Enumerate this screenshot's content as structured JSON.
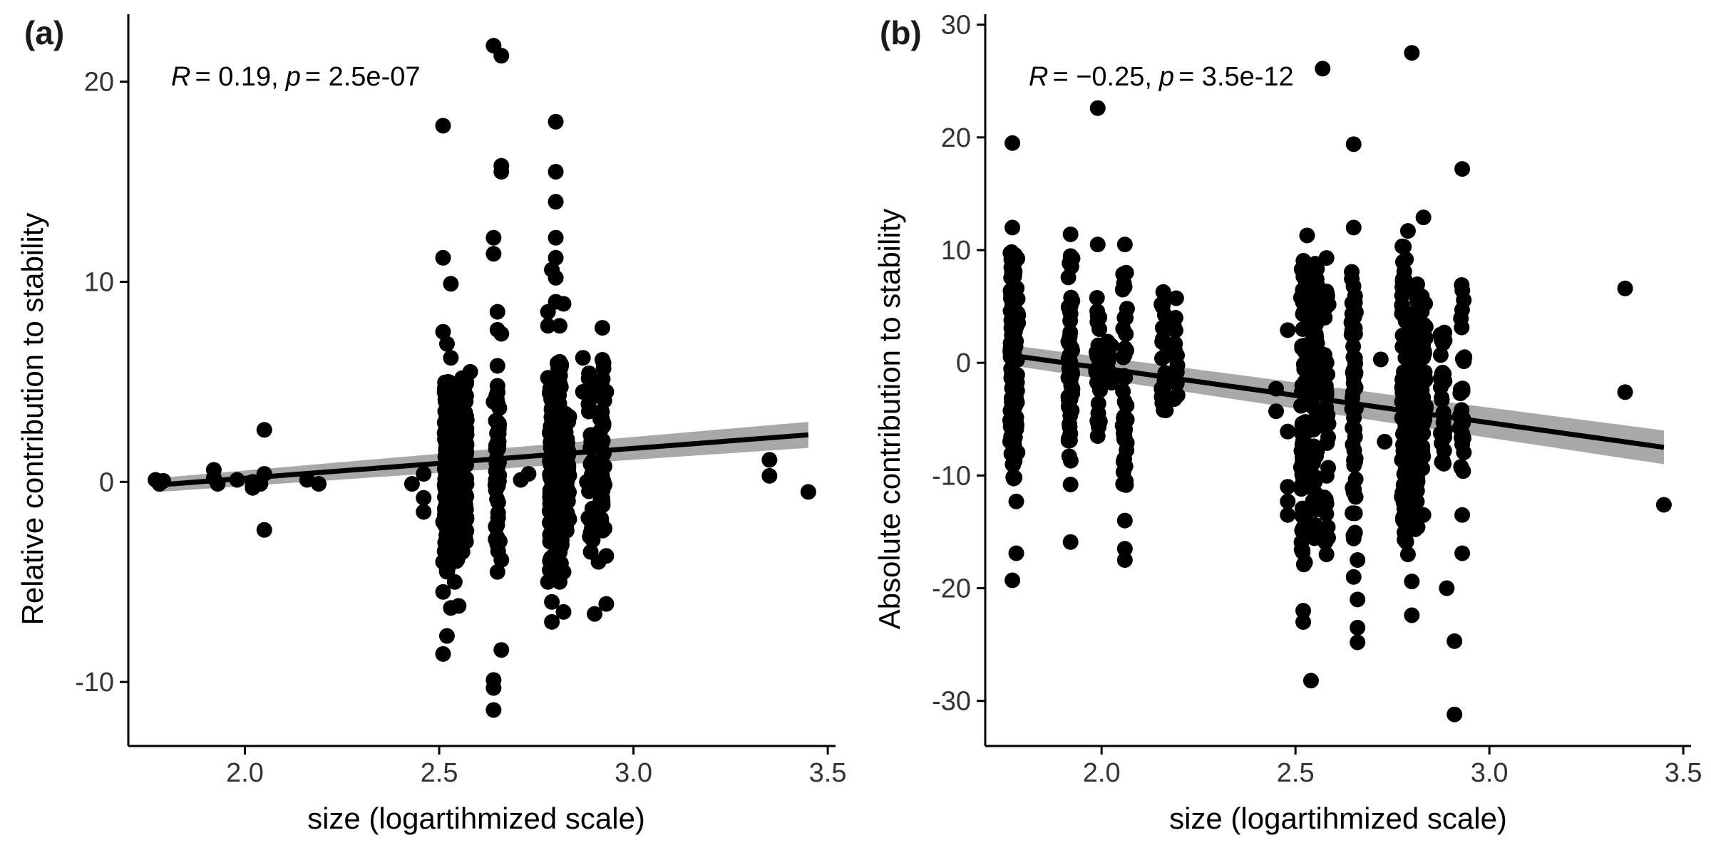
{
  "colors": {
    "point": "#000000",
    "fit_line": "#000000",
    "confidence_band": "#999999",
    "axis": "#000000"
  },
  "chart_data": [
    {
      "type": "scatter",
      "panel": "(a)",
      "title": "",
      "xlabel": "size (logartihmized scale)",
      "ylabel": "Relative contribution to stability",
      "xlim": [
        1.7,
        3.52
      ],
      "ylim": [
        -13.2,
        23.3
      ],
      "xticks": [
        2.0,
        2.5,
        3.0,
        3.5
      ],
      "xtick_labels": [
        "2.0",
        "2.5",
        "3.0",
        "3.5"
      ],
      "yticks": [
        -10,
        0,
        10,
        20
      ],
      "ytick_labels": [
        "-10",
        "0",
        "10",
        "20"
      ],
      "grid": false,
      "legend": "none",
      "annotation": {
        "r_label": "R",
        "r_value": "= 0.19,",
        "p_label": "p",
        "p_value": "= 2.5e-07"
      },
      "fit": {
        "x": [
          1.78,
          3.45
        ],
        "y": [
          -0.15,
          2.35
        ],
        "ci_low": [
          -0.5,
          1.7
        ],
        "ci_high": [
          0.2,
          3.0
        ]
      },
      "points": [
        [
          1.77,
          0.1
        ],
        [
          1.78,
          -0.1
        ],
        [
          1.79,
          0.05
        ],
        [
          1.92,
          0.6
        ],
        [
          1.92,
          0.2
        ],
        [
          1.93,
          -0.1
        ],
        [
          1.98,
          0.1
        ],
        [
          2.02,
          0.0
        ],
        [
          2.02,
          -0.3
        ],
        [
          2.04,
          -0.1
        ],
        [
          2.05,
          0.4
        ],
        [
          2.05,
          2.6
        ],
        [
          2.05,
          -2.4
        ],
        [
          2.16,
          0.1
        ],
        [
          2.19,
          -0.1
        ],
        [
          2.43,
          -0.1
        ],
        [
          2.46,
          -0.8
        ],
        [
          2.46,
          -1.5
        ],
        [
          2.46,
          0.4
        ],
        [
          2.51,
          17.8
        ],
        [
          2.51,
          11.2
        ],
        [
          2.51,
          7.5
        ],
        [
          2.51,
          -2.0
        ],
        [
          2.51,
          -4.0
        ],
        [
          2.51,
          -5.5
        ],
        [
          2.51,
          -8.6
        ],
        [
          2.52,
          6.9
        ],
        [
          2.52,
          -1.0
        ],
        [
          2.52,
          -3.0
        ],
        [
          2.52,
          -7.7
        ],
        [
          2.53,
          9.9
        ],
        [
          2.53,
          6.2
        ],
        [
          2.53,
          -6.3
        ],
        [
          2.54,
          -5.0
        ],
        [
          2.55,
          -6.2
        ],
        [
          2.56,
          -3.5
        ],
        [
          2.56,
          -2.5
        ],
        [
          2.57,
          5.0
        ],
        [
          2.58,
          5.5
        ],
        [
          2.64,
          21.8
        ],
        [
          2.66,
          21.3
        ],
        [
          2.66,
          15.8
        ],
        [
          2.66,
          15.5
        ],
        [
          2.64,
          12.2
        ],
        [
          2.64,
          11.4
        ],
        [
          2.65,
          8.5
        ],
        [
          2.65,
          7.6
        ],
        [
          2.66,
          7.4
        ],
        [
          2.65,
          5.8
        ],
        [
          2.65,
          4.8
        ],
        [
          2.64,
          4.0
        ],
        [
          2.65,
          3.0
        ],
        [
          2.66,
          -3.9
        ],
        [
          2.65,
          -4.5
        ],
        [
          2.66,
          -8.4
        ],
        [
          2.64,
          -9.9
        ],
        [
          2.64,
          -10.3
        ],
        [
          2.64,
          -11.4
        ],
        [
          2.71,
          0.1
        ],
        [
          2.73,
          0.4
        ],
        [
          2.78,
          8.5
        ],
        [
          2.78,
          7.8
        ],
        [
          2.78,
          5.2
        ],
        [
          2.78,
          -5.0
        ],
        [
          2.79,
          -6.0
        ],
        [
          2.79,
          -7.0
        ],
        [
          2.79,
          10.6
        ],
        [
          2.8,
          18.0
        ],
        [
          2.8,
          15.5
        ],
        [
          2.8,
          14.0
        ],
        [
          2.8,
          12.2
        ],
        [
          2.8,
          11.2
        ],
        [
          2.8,
          10.2
        ],
        [
          2.8,
          9.0
        ],
        [
          2.81,
          7.8
        ],
        [
          2.81,
          6.0
        ],
        [
          2.82,
          8.9
        ],
        [
          2.82,
          -6.5
        ],
        [
          2.82,
          -4.5
        ],
        [
          2.81,
          -5.0
        ],
        [
          2.87,
          6.2
        ],
        [
          2.87,
          4.5
        ],
        [
          2.88,
          0.0
        ],
        [
          2.89,
          -3.5
        ],
        [
          2.9,
          -6.6
        ],
        [
          2.91,
          -4.0
        ],
        [
          2.92,
          7.7
        ],
        [
          2.92,
          6.1
        ],
        [
          2.93,
          4.5
        ],
        [
          2.93,
          -6.1
        ],
        [
          2.93,
          -3.7
        ],
        [
          3.35,
          1.1
        ],
        [
          3.35,
          0.3
        ],
        [
          3.45,
          -0.5
        ]
      ],
      "clusters": [
        {
          "x": 2.52,
          "count": 150,
          "y_min": -4.5,
          "y_max": 5.0
        },
        {
          "x": 2.545,
          "count": 110,
          "y_min": -4.0,
          "y_max": 4.5
        },
        {
          "x": 2.565,
          "count": 90,
          "y_min": -3.0,
          "y_max": 5.2
        },
        {
          "x": 2.65,
          "count": 50,
          "y_min": -3.5,
          "y_max": 4.5
        },
        {
          "x": 2.79,
          "count": 90,
          "y_min": -4.5,
          "y_max": 5.0
        },
        {
          "x": 2.81,
          "count": 90,
          "y_min": -4.5,
          "y_max": 6.0
        },
        {
          "x": 2.83,
          "count": 35,
          "y_min": -2.5,
          "y_max": 3.5
        },
        {
          "x": 2.89,
          "count": 30,
          "y_min": -3.0,
          "y_max": 6.0
        },
        {
          "x": 2.92,
          "count": 40,
          "y_min": -2.5,
          "y_max": 6.0
        }
      ]
    },
    {
      "type": "scatter",
      "panel": "(b)",
      "title": "",
      "xlabel": "size (logartihmized scale)",
      "ylabel": "Absolute contribution to stability",
      "xlim": [
        1.7,
        3.52
      ],
      "ylim": [
        -34,
        30.8
      ],
      "xticks": [
        2.0,
        2.5,
        3.0,
        3.5
      ],
      "xtick_labels": [
        "2.0",
        "2.5",
        "3.0",
        "3.5"
      ],
      "yticks": [
        -30,
        -20,
        -10,
        0,
        10,
        20,
        30
      ],
      "ytick_labels": [
        "-30",
        "-20",
        "-10",
        "0",
        "10",
        "20",
        "30"
      ],
      "grid": false,
      "legend": "none",
      "annotation": {
        "r_label": "R",
        "r_value": "= −0.25,",
        "p_label": "p",
        "p_value": "= 3.5e-12"
      },
      "fit": {
        "x": [
          1.78,
          3.45
        ],
        "y": [
          0.6,
          -7.5
        ],
        "ci_low": [
          -0.3,
          -9.0
        ],
        "ci_high": [
          1.5,
          -6.0
        ]
      },
      "points": [
        [
          1.77,
          19.5
        ],
        [
          1.77,
          12.0
        ],
        [
          1.78,
          -12.3
        ],
        [
          1.78,
          -16.9
        ],
        [
          1.77,
          -19.3
        ],
        [
          1.92,
          11.4
        ],
        [
          1.92,
          9.0
        ],
        [
          1.92,
          -15.9
        ],
        [
          1.92,
          -10.8
        ],
        [
          1.99,
          22.6
        ],
        [
          1.99,
          10.5
        ],
        [
          1.99,
          -6.5
        ],
        [
          2.06,
          10.5
        ],
        [
          2.06,
          -16.5
        ],
        [
          2.06,
          -17.5
        ],
        [
          2.06,
          -14.0
        ],
        [
          2.45,
          -2.3
        ],
        [
          2.45,
          -4.3
        ],
        [
          2.48,
          2.9
        ],
        [
          2.48,
          -6.1
        ],
        [
          2.48,
          -11.0
        ],
        [
          2.48,
          -12.3
        ],
        [
          2.48,
          -13.5
        ],
        [
          2.52,
          -22.0
        ],
        [
          2.52,
          -23.0
        ],
        [
          2.53,
          11.3
        ],
        [
          2.54,
          -28.2
        ],
        [
          2.57,
          26.1
        ],
        [
          2.58,
          9.3
        ],
        [
          2.58,
          -17.0
        ],
        [
          2.58,
          -12.5
        ],
        [
          2.65,
          19.4
        ],
        [
          2.65,
          12.0
        ],
        [
          2.65,
          -19.0
        ],
        [
          2.66,
          -21.0
        ],
        [
          2.66,
          -23.5
        ],
        [
          2.66,
          -24.8
        ],
        [
          2.66,
          -17.5
        ],
        [
          2.72,
          0.3
        ],
        [
          2.73,
          -7.0
        ],
        [
          2.79,
          11.7
        ],
        [
          2.79,
          -17.0
        ],
        [
          2.8,
          27.5
        ],
        [
          2.8,
          -22.4
        ],
        [
          2.8,
          -19.4
        ],
        [
          2.83,
          12.9
        ],
        [
          2.83,
          -13.5
        ],
        [
          2.89,
          -20.0
        ],
        [
          2.91,
          -24.7
        ],
        [
          2.91,
          -31.2
        ],
        [
          2.93,
          17.2
        ],
        [
          2.93,
          -16.9
        ],
        [
          2.93,
          -13.5
        ],
        [
          3.35,
          6.6
        ],
        [
          3.35,
          -2.6
        ],
        [
          3.45,
          -12.6
        ]
      ],
      "clusters": [
        {
          "x": 1.77,
          "count": 70,
          "y_min": -10.5,
          "y_max": 11.5
        },
        {
          "x": 1.78,
          "count": 40,
          "y_min": -8.0,
          "y_max": 10.0
        },
        {
          "x": 1.92,
          "count": 55,
          "y_min": -9.0,
          "y_max": 9.5
        },
        {
          "x": 1.99,
          "count": 30,
          "y_min": -6.0,
          "y_max": 7.0
        },
        {
          "x": 2.02,
          "count": 15,
          "y_min": -2.0,
          "y_max": 2.0
        },
        {
          "x": 2.06,
          "count": 45,
          "y_min": -11.0,
          "y_max": 8.0
        },
        {
          "x": 2.16,
          "count": 25,
          "y_min": -5.0,
          "y_max": 6.5
        },
        {
          "x": 2.19,
          "count": 15,
          "y_min": -3.5,
          "y_max": 7.5
        },
        {
          "x": 2.52,
          "count": 70,
          "y_min": -18.0,
          "y_max": 10.0
        },
        {
          "x": 2.55,
          "count": 70,
          "y_min": -16.0,
          "y_max": 9.0
        },
        {
          "x": 2.58,
          "count": 40,
          "y_min": -16.0,
          "y_max": 7.0
        },
        {
          "x": 2.65,
          "count": 55,
          "y_min": -16.0,
          "y_max": 9.0
        },
        {
          "x": 2.78,
          "count": 85,
          "y_min": -16.0,
          "y_max": 11.0
        },
        {
          "x": 2.81,
          "count": 85,
          "y_min": -15.0,
          "y_max": 7.0
        },
        {
          "x": 2.83,
          "count": 30,
          "y_min": -10.0,
          "y_max": 6.0
        },
        {
          "x": 2.88,
          "count": 25,
          "y_min": -9.0,
          "y_max": 3.0
        },
        {
          "x": 2.93,
          "count": 30,
          "y_min": -10.0,
          "y_max": 7.5
        }
      ]
    }
  ]
}
